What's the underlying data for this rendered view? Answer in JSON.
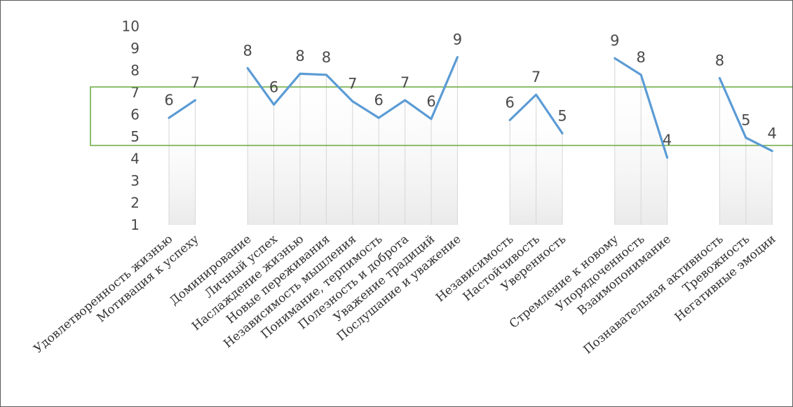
{
  "chart_data": {
    "type": "line",
    "title": "",
    "xlabel": "",
    "ylabel": "",
    "ylim": [
      1,
      10
    ],
    "yticks": [
      1,
      2,
      3,
      4,
      5,
      6,
      7,
      8,
      9,
      10
    ],
    "grid": "vertical drop lines",
    "legend": "none",
    "categories": [
      "Удовлетворенность жизнью",
      "Мотивация к успеху",
      "",
      "Доминирование",
      "Личный успех",
      "Наслаждение жизнью",
      "Новые переживания",
      "Независимость мышления",
      "Понимание, терпимость",
      "Полезность и доброта",
      "Уважение традиций",
      "Послушание и уважение",
      "",
      "Независимость",
      "Настойчивость",
      "Уверенность",
      "",
      "Стремление к новому",
      "Упорядоченность",
      "Взаимопонимание",
      "",
      "Познавательная активность",
      "Тревожность",
      "Негативные эмоции"
    ],
    "series": [
      {
        "values": [
          5.85,
          6.65,
          null,
          8.1,
          6.45,
          7.85,
          7.8,
          6.6,
          5.85,
          6.65,
          5.8,
          8.6,
          null,
          5.75,
          6.9,
          5.15,
          null,
          8.55,
          7.8,
          4.05,
          null,
          7.65,
          4.95,
          4.35
        ],
        "labels": [
          "6",
          "7",
          "",
          "8",
          "6",
          "8",
          "8",
          "7",
          "6",
          "7",
          "6",
          "9",
          "",
          "6",
          "7",
          "5",
          "",
          "9",
          "8",
          "4",
          "",
          "8",
          "5",
          "4"
        ],
        "color": "#5b9bd5"
      }
    ],
    "highlight_band": {
      "y_range": [
        4.6,
        7.25
      ],
      "color": "#70ad47"
    }
  }
}
